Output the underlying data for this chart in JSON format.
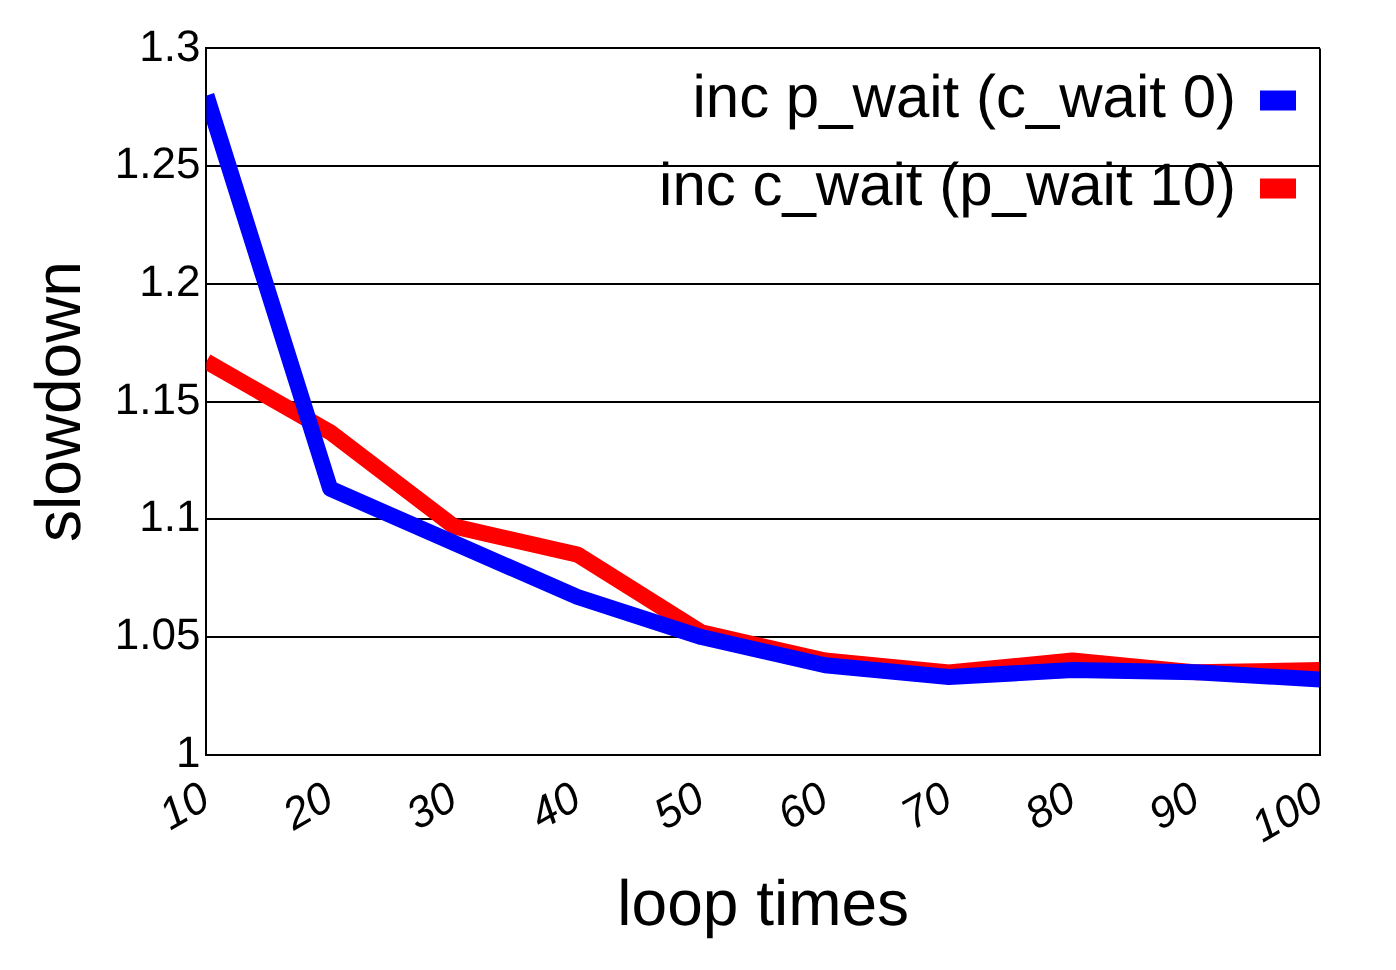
{
  "chart_data": {
    "type": "line",
    "xlabel": "loop times",
    "ylabel": "slowdown",
    "x": [
      10,
      20,
      30,
      40,
      50,
      60,
      70,
      80,
      90,
      100
    ],
    "series": [
      {
        "name": "inc p_wait (c_wait 0)",
        "color": "#0000ff",
        "values": [
          1.28,
          1.113,
          1.09,
          1.067,
          1.05,
          1.038,
          1.033,
          1.036,
          1.035,
          1.032
        ]
      },
      {
        "name": "inc c_wait (p_wait 10)",
        "color": "#ff0000",
        "values": [
          1.167,
          1.137,
          1.097,
          1.085,
          1.052,
          1.04,
          1.035,
          1.04,
          1.035,
          1.036
        ]
      }
    ],
    "xlim": [
      10,
      100
    ],
    "xticks": [
      10,
      20,
      30,
      40,
      50,
      60,
      70,
      80,
      90,
      100
    ],
    "ylim": [
      1,
      1.3
    ],
    "yticks": [
      1,
      1.05,
      1.1,
      1.15,
      1.2,
      1.25,
      1.3
    ],
    "grid": "y",
    "legend": "top right",
    "marker": "none",
    "line_style": "solid"
  }
}
